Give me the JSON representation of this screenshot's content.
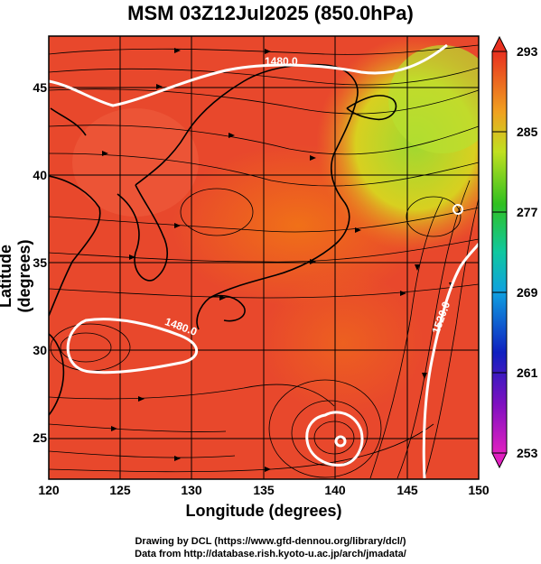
{
  "title": "MSM 03Z12Jul2025 (850.0hPa)",
  "axes": {
    "xlabel": "Longitude (degrees)",
    "ylabel": "Latitude  (degrees)",
    "x_ticks": [
      "120",
      "125",
      "130",
      "135",
      "140",
      "145",
      "150"
    ],
    "y_ticks": [
      "25",
      "30",
      "35",
      "40",
      "45"
    ],
    "xlim": [
      120,
      150
    ],
    "ylim": [
      22.5,
      47.8
    ]
  },
  "colorbar": {
    "ticks": [
      "293",
      "285",
      "277",
      "269",
      "261",
      "253"
    ],
    "range": [
      253,
      293
    ]
  },
  "contour_labels": [
    "1480.0",
    "1480.0",
    "1520.0"
  ],
  "credits": {
    "line1": "Drawing by DCL (https://www.gfd-dennou.org/library/dcl/)",
    "line2": "Data from http://database.rish.kyoto-u.ac.jp/arch/jmadata/"
  },
  "colors": {
    "background_field": "#e8482c",
    "warm_field": "#f25a20",
    "cool_field": "#c8e030",
    "contour": "#ffffff",
    "streamline": "#000000"
  }
}
